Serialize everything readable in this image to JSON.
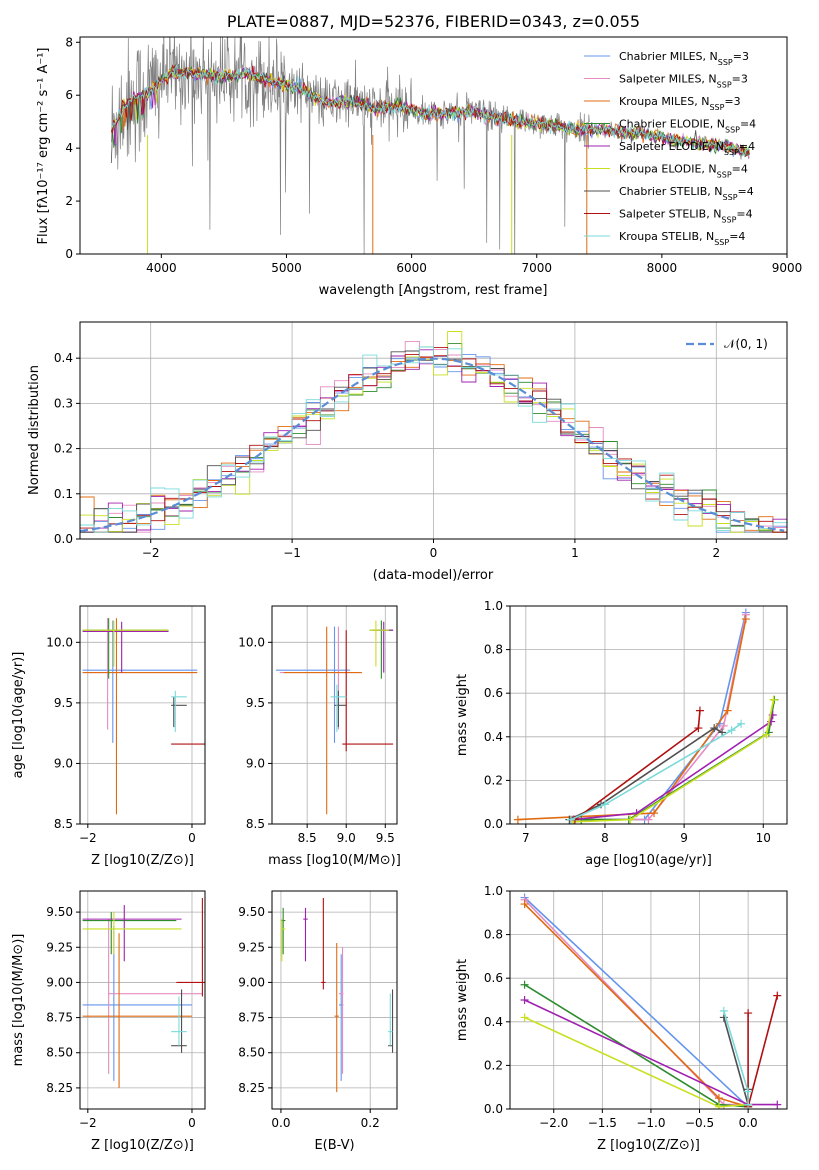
{
  "title": "PLATE=0887, MJD=52376, FIBERID=0343, z=0.055",
  "colors": [
    "#6495ed",
    "#e58bc2",
    "#e06b10",
    "#2e8b2e",
    "#a020b0",
    "#c8e020",
    "#505050",
    "#b01010",
    "#7adada"
  ],
  "models": [
    {
      "name": "Chabrier MILES, N_SSP=3",
      "imf": "Chabrier",
      "lib": "MILES",
      "nssp": "3"
    },
    {
      "name": "Salpeter MILES, N_SSP=3",
      "imf": "Salpeter",
      "lib": "MILES",
      "nssp": "3"
    },
    {
      "name": "Kroupa MILES, N_SSP=3",
      "imf": "Kroupa",
      "lib": "MILES",
      "nssp": "3"
    },
    {
      "name": "Chabrier ELODIE, N_SSP=4",
      "imf": "Chabrier",
      "lib": "ELODIE",
      "nssp": "4"
    },
    {
      "name": "Salpeter ELODIE, N_SSP=4",
      "imf": "Salpeter",
      "lib": "ELODIE",
      "nssp": "4"
    },
    {
      "name": "Kroupa ELODIE, N_SSP=4",
      "imf": "Kroupa",
      "lib": "ELODIE",
      "nssp": "4"
    },
    {
      "name": "Chabrier STELIB, N_SSP=4",
      "imf": "Chabrier",
      "lib": "STELIB",
      "nssp": "4"
    },
    {
      "name": "Salpeter STELIB, N_SSP=4",
      "imf": "Salpeter",
      "lib": "STELIB",
      "nssp": "4"
    },
    {
      "name": "Kroupa STELIB, N_SSP=4",
      "imf": "Kroupa",
      "lib": "STELIB",
      "nssp": "4"
    }
  ],
  "chart_data": [
    {
      "id": "spectrum",
      "type": "line",
      "xlabel": "wavelength [Angstrom, rest frame]",
      "ylabel": "Flux [f_λ 10^-17 erg cm^-2 s^-1 A^-1]",
      "xlim": [
        3350,
        9000
      ],
      "ylim": [
        0,
        8.2
      ],
      "xticks": [
        4000,
        5000,
        6000,
        7000,
        8000,
        9000
      ],
      "yticks": [
        0,
        2,
        4,
        6,
        8
      ],
      "grid": false,
      "legend": "top-right",
      "data_color": "#808080",
      "continuum": [
        [
          3600,
          4.6
        ],
        [
          3700,
          5.6
        ],
        [
          3800,
          5.9
        ],
        [
          3900,
          6.1
        ],
        [
          4000,
          6.6
        ],
        [
          4100,
          6.9
        ],
        [
          4300,
          6.8
        ],
        [
          4500,
          6.7
        ],
        [
          4700,
          6.8
        ],
        [
          4900,
          6.5
        ],
        [
          5100,
          6.3
        ],
        [
          5300,
          5.7
        ],
        [
          5500,
          5.8
        ],
        [
          5700,
          5.5
        ],
        [
          5900,
          5.6
        ],
        [
          6100,
          5.3
        ],
        [
          6300,
          5.3
        ],
        [
          6500,
          5.4
        ],
        [
          6700,
          5.1
        ],
        [
          6900,
          5.0
        ],
        [
          7100,
          4.9
        ],
        [
          7300,
          4.7
        ],
        [
          7500,
          4.7
        ],
        [
          7700,
          4.6
        ],
        [
          7900,
          4.5
        ],
        [
          8100,
          4.3
        ],
        [
          8300,
          4.2
        ],
        [
          8500,
          4.1
        ],
        [
          8700,
          3.8
        ]
      ],
      "model_end": 8700
    },
    {
      "id": "residuals",
      "type": "step",
      "xlabel": "(data-model)/error",
      "ylabel": "Normed distribution",
      "xlim": [
        -2.5,
        2.5
      ],
      "ylim": [
        0,
        0.48
      ],
      "xticks": [
        -2,
        -1,
        0,
        1,
        2
      ],
      "yticks": [
        0,
        0.1,
        0.2,
        0.3,
        0.4
      ],
      "grid": true,
      "legend": "top-right",
      "reference": {
        "name": "N(0,1)",
        "label": "𝒩(0, 1)",
        "mean": 0,
        "sigma": 1,
        "color": "#5b8dd6"
      }
    },
    {
      "id": "age-vs-Z",
      "type": "errorbar",
      "xlabel": "Z [log10(Z/Z⊙)]",
      "ylabel": "age  [log10(age/yr)]",
      "xlim": [
        -2.15,
        0.25
      ],
      "ylim": [
        8.5,
        10.3
      ],
      "xticks": [
        -2,
        0
      ],
      "yticks": [
        8.5,
        9.0,
        9.5,
        10.0
      ],
      "grid": true
    },
    {
      "id": "age-vs-mass",
      "type": "errorbar",
      "xlabel": "mass [log10(M/M⊙)]",
      "ylabel": "",
      "xlim": [
        8.05,
        9.65
      ],
      "ylim": [
        8.5,
        10.3
      ],
      "xticks": [
        8.5,
        9.0,
        9.5
      ],
      "yticks": [
        8.5,
        9.0,
        9.5,
        10.0
      ],
      "grid": true
    },
    {
      "id": "weight-vs-age",
      "type": "line",
      "xlabel": "age  [log10(age/yr)]",
      "ylabel": "mass weight",
      "xlim": [
        6.8,
        10.3
      ],
      "ylim": [
        0,
        1.0
      ],
      "xticks": [
        7,
        8,
        9,
        10
      ],
      "yticks": [
        0,
        0.2,
        0.4,
        0.6,
        0.8,
        1.0
      ],
      "grid": true,
      "series": [
        {
          "x": [
            7.6,
            8.5,
            9.45,
            9.78
          ],
          "y": [
            0.02,
            0.02,
            0.46,
            0.97
          ]
        },
        {
          "x": [
            7.6,
            8.55,
            9.5,
            9.78
          ],
          "y": [
            0.02,
            0.02,
            0.45,
            0.96
          ]
        },
        {
          "x": [
            6.9,
            8.62,
            9.55,
            9.78
          ],
          "y": [
            0.02,
            0.05,
            0.52,
            0.94
          ]
        },
        {
          "x": [
            7.7,
            8.3,
            10.07,
            10.14
          ],
          "y": [
            0.02,
            0.02,
            0.42,
            0.57
          ]
        },
        {
          "x": [
            7.6,
            8.4,
            10.1,
            10.12
          ],
          "y": [
            0.02,
            0.05,
            0.47,
            0.5
          ]
        },
        {
          "x": [
            7.6,
            8.32,
            10.04,
            10.13
          ],
          "y": [
            0.01,
            0.02,
            0.41,
            0.57
          ]
        },
        {
          "x": [
            7.55,
            7.95,
            9.38,
            9.48
          ],
          "y": [
            0.02,
            0.09,
            0.44,
            0.42
          ]
        },
        {
          "x": [
            7.57,
            7.62,
            9.18,
            9.2
          ],
          "y": [
            0.02,
            0.02,
            0.44,
            0.52
          ]
        },
        {
          "x": [
            7.57,
            8.0,
            9.6,
            9.72
          ],
          "y": [
            0.02,
            0.09,
            0.43,
            0.46
          ]
        }
      ]
    },
    {
      "id": "mass-vs-Z",
      "type": "errorbar",
      "xlabel": "Z [log10(Z/Z⊙)]",
      "ylabel": "mass [log10(M/M⊙)]",
      "xlim": [
        -2.15,
        0.25
      ],
      "ylim": [
        8.1,
        9.65
      ],
      "xticks": [
        -2,
        0
      ],
      "yticks": [
        8.25,
        8.5,
        8.75,
        9.0,
        9.25,
        9.5
      ],
      "grid": true
    },
    {
      "id": "mass-vs-EBV",
      "type": "errorbar",
      "xlabel": "E(B-V)",
      "ylabel": "",
      "xlim": [
        -0.02,
        0.26
      ],
      "ylim": [
        8.1,
        9.65
      ],
      "xticks": [
        0.0,
        0.2
      ],
      "yticks": [
        8.25,
        8.5,
        8.75,
        9.0,
        9.25,
        9.5
      ],
      "grid": true
    },
    {
      "id": "weight-vs-Z",
      "type": "line",
      "xlabel": "Z [log10(Z/Z⊙)]",
      "ylabel": "mass weight",
      "xlim": [
        -2.45,
        0.4
      ],
      "ylim": [
        0,
        1.0
      ],
      "xticks": [
        -2.0,
        -1.5,
        -1.0,
        -0.5,
        0.0
      ],
      "yticks": [
        0,
        0.2,
        0.4,
        0.6,
        0.8,
        1.0
      ],
      "grid": true,
      "series": [
        {
          "x": [
            -2.3,
            0.0,
            0.0
          ],
          "y": [
            0.97,
            0.01,
            0.08
          ]
        },
        {
          "x": [
            -2.3,
            -0.25,
            0.0
          ],
          "y": [
            0.96,
            0.02,
            0.02
          ]
        },
        {
          "x": [
            -2.3,
            -0.3,
            0.0
          ],
          "y": [
            0.94,
            0.05,
            0.01
          ]
        },
        {
          "x": [
            -2.3,
            -0.3,
            0.0
          ],
          "y": [
            0.57,
            0.02,
            0.01
          ]
        },
        {
          "x": [
            -2.3,
            0.0,
            0.3
          ],
          "y": [
            0.5,
            0.02,
            0.02
          ]
        },
        {
          "x": [
            -2.3,
            -0.3,
            0.0
          ],
          "y": [
            0.42,
            0.01,
            0.02
          ]
        },
        {
          "x": [
            -0.25,
            0.0,
            0.0
          ],
          "y": [
            0.42,
            0.02,
            0.09
          ]
        },
        {
          "x": [
            0.0,
            0.0,
            0.3
          ],
          "y": [
            0.44,
            0.01,
            0.52
          ]
        },
        {
          "x": [
            -0.25,
            0.0,
            0.0
          ],
          "y": [
            0.45,
            0.08,
            0.02
          ]
        }
      ]
    }
  ]
}
